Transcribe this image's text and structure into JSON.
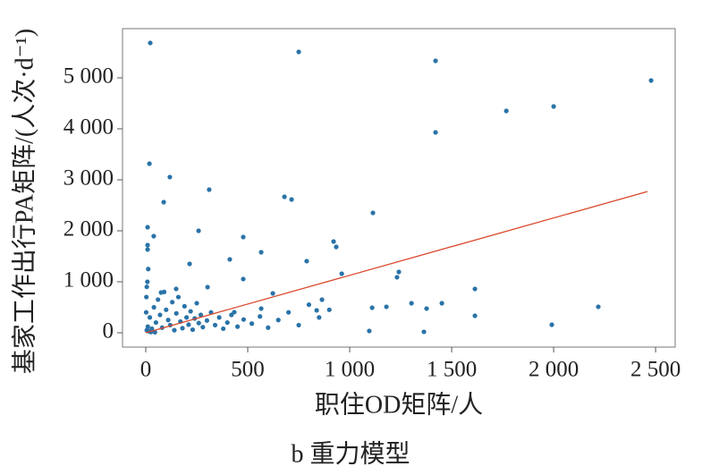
{
  "chart_data": {
    "type": "scatter",
    "title": "b 重力模型",
    "x_label": "职住OD矩阵/人",
    "y_label": "基家工作出行PA矩阵/(人次·d⁻¹)",
    "color": "#2a73a8",
    "x": [
      22,
      750,
      1421,
      2478,
      1768,
      2000,
      1421,
      18,
      118,
      311,
      88,
      680,
      715,
      1114,
      9,
      39,
      259,
      478,
      921,
      934,
      9,
      9,
      566,
      789,
      412,
      1241,
      1232,
      961,
      478,
      215,
      1614,
      1303,
      1180,
      1452,
      1377,
      1110,
      1614,
      1991,
      2219,
      1364,
      1096,
      864,
      838,
      623,
      566,
      434,
      303,
      149,
      75,
      5,
      10,
      20,
      30,
      40,
      50,
      60,
      70,
      80,
      90,
      100,
      110,
      120,
      130,
      140,
      150,
      160,
      170,
      180,
      190,
      200,
      210,
      220,
      230,
      240,
      250,
      260,
      270,
      280,
      300,
      320,
      340,
      360,
      380,
      400,
      420,
      450,
      480,
      520,
      560,
      600,
      650,
      700,
      750,
      800,
      850,
      900,
      5,
      8,
      12,
      3,
      15,
      25,
      45,
      2
    ],
    "values": [
      5684,
      5509,
      5333,
      4947,
      4351,
      4439,
      3930,
      3316,
      3053,
      2807,
      2561,
      2667,
      2614,
      2351,
      2070,
      1895,
      2000,
      1877,
      1789,
      1684,
      1719,
      1632,
      1579,
      1404,
      1439,
      1193,
      1088,
      1158,
      1053,
      1351,
      860,
      579,
      509,
      579,
      474,
      491,
      333,
      158,
      509,
      18,
      35,
      649,
      439,
      772,
      474,
      404,
      895,
      860,
      789,
      50,
      120,
      300,
      80,
      500,
      200,
      650,
      350,
      100,
      800,
      450,
      250,
      150,
      600,
      50,
      380,
      700,
      220,
      90,
      520,
      300,
      160,
      420,
      60,
      280,
      580,
      190,
      350,
      110,
      240,
      400,
      150,
      300,
      80,
      200,
      350,
      120,
      260,
      180,
      320,
      100,
      250,
      400,
      150,
      550,
      300,
      450,
      900,
      1000,
      1250,
      700,
      30,
      15,
      10,
      400
    ],
    "fit_line": {
      "x": [
        0,
        2460
      ],
      "values": [
        0,
        2770
      ],
      "color": "#d9482b"
    },
    "xlim": [
      -114,
      2596
    ],
    "ylim": [
      -281,
      5965
    ],
    "xticks": [
      0,
      500,
      {
        "value": 1000,
        "label": "1 000"
      },
      {
        "value": 1500,
        "label": "1 500"
      },
      {
        "value": 2000,
        "label": "2 000"
      },
      {
        "value": 2500,
        "label": "2 500"
      }
    ],
    "yticks": [
      0,
      {
        "value": 1000,
        "label": "1 000"
      },
      {
        "value": 2000,
        "label": "2 000"
      },
      {
        "value": 3000,
        "label": "3 000"
      },
      {
        "value": 4000,
        "label": "4 000"
      },
      {
        "value": 5000,
        "label": "5 000"
      }
    ],
    "grid": false
  }
}
